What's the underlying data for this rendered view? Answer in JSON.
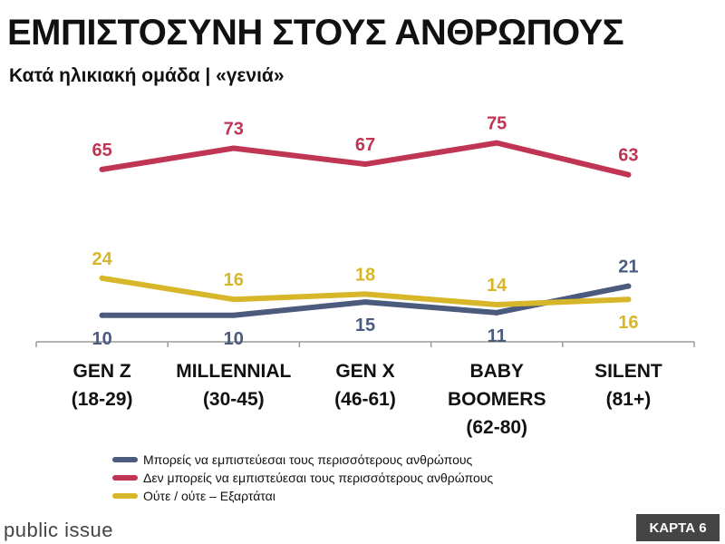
{
  "title": "ΕΜΠΙΣΤΟΣΥΝΗ ΣΤΟΥΣ ΑΝΘΡΩΠΟΥΣ",
  "subtitle": "Κατά ηλικιακή ομάδα | «γενιά»",
  "footer": {
    "logo_text": "public issue",
    "badge": "ΚΑΡΤΑ 6"
  },
  "chart_data": {
    "type": "line",
    "categories": [
      [
        "GEN Z",
        "(18-29)"
      ],
      [
        "MILLENNIAL",
        "(30-45)"
      ],
      [
        "GEN X",
        "(46-61)"
      ],
      [
        "BABY",
        "BOOMERS",
        "(62-80)"
      ],
      [
        "SILENT",
        "(81+)"
      ]
    ],
    "ylim": [
      0,
      80
    ],
    "grid": false,
    "legend_position": "bottom",
    "series": [
      {
        "name": "Μπορείς να εμπιστεύεσαι τους περισσότερους ανθρώπους",
        "color": "#4b5b7e",
        "values": [
          10,
          10,
          15,
          11,
          21
        ],
        "label_side": [
          "below",
          "below",
          "below",
          "below",
          "above"
        ]
      },
      {
        "name": "Δεν μπορείς να εμπιστεύεσαι τους περισσότερους ανθρώπους",
        "color": "#bf3553",
        "values": [
          65,
          73,
          67,
          75,
          63
        ],
        "label_side": [
          "above",
          "above",
          "above",
          "above",
          "above"
        ]
      },
      {
        "name": "Ούτε / ούτε – Εξαρτάται",
        "color": "#d8b62a",
        "values": [
          24,
          16,
          18,
          14,
          16
        ],
        "label_side": [
          "above",
          "above",
          "above",
          "above",
          "below"
        ]
      }
    ]
  }
}
